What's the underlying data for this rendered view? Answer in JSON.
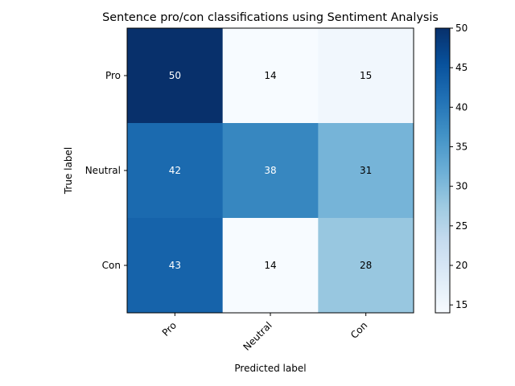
{
  "chart_data": {
    "type": "heatmap",
    "title": "Sentence pro/con classifications using Sentiment Analysis",
    "xlabel": "Predicted label",
    "ylabel": "True label",
    "x_categories": [
      "Pro",
      "Neutral",
      "Con"
    ],
    "y_categories": [
      "Pro",
      "Neutral",
      "Con"
    ],
    "values": [
      [
        50,
        14,
        15
      ],
      [
        42,
        38,
        31
      ],
      [
        43,
        14,
        28
      ]
    ],
    "colormap": "Blues",
    "color_range": [
      14,
      50
    ],
    "colorbar_ticks": [
      15,
      20,
      25,
      30,
      35,
      40,
      45,
      50
    ],
    "text_color_dark": "#000000",
    "text_color_light": "#ffffff",
    "grid": false
  }
}
